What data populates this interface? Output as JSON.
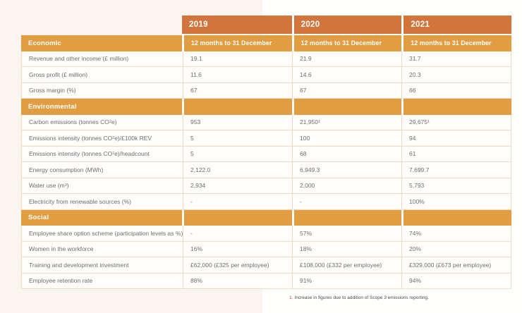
{
  "page": {
    "bg_left": "#faf5ee",
    "bg_right": "#fefefd",
    "accent_dark_orange": "#d2753c",
    "accent_light_orange": "#e29c41",
    "row_border": "#f2d9bd",
    "footnote_red": "#c9472f"
  },
  "table": {
    "years": [
      "2019",
      "2020",
      "2021"
    ],
    "period_label": "12 months to 31 December",
    "sections": [
      {
        "title": "Economic",
        "show_period": true,
        "rows": [
          {
            "label": "Revenue and other income (£ million)",
            "values": [
              "19.1",
              "21.9",
              "31.7"
            ]
          },
          {
            "label": "Gross profit (£ million)",
            "values": [
              "11.6",
              "14.6",
              "20.3"
            ]
          },
          {
            "label": "Gross margin (%)",
            "values": [
              "67",
              "67",
              "66"
            ]
          }
        ]
      },
      {
        "title": "Environmental",
        "show_period": false,
        "rows": [
          {
            "label": "Carbon emissions (tonnes CO~2~e)",
            "values": [
              "953",
              "21,950*1*",
              "29,675*1*"
            ]
          },
          {
            "label": "Emissions intensity (tonnes CO~2~e)/£100k REV",
            "values": [
              "5",
              "100",
              "94"
            ]
          },
          {
            "label": "Emissions intensity (tonnes CO~2~e)/headcount",
            "values": [
              "5",
              "68",
              "61"
            ]
          },
          {
            "label": "Energy consumption (MWh)",
            "values": [
              "2,122.0",
              "6,949.3",
              "7,699.7"
            ]
          },
          {
            "label": "Water use (m^3^)",
            "values": [
              "2,934",
              "2,000",
              "5,793"
            ]
          },
          {
            "label": "Electricity from renewable sources (%)",
            "values": [
              "-",
              "-",
              "100%"
            ]
          }
        ]
      },
      {
        "title": "Social",
        "show_period": false,
        "rows": [
          {
            "label": "Employee share option scheme (participation levels as %)",
            "values": [
              "-",
              "57%",
              "74%"
            ]
          },
          {
            "label": "Women in the workforce",
            "values": [
              "16%",
              "18%",
              "20%"
            ]
          },
          {
            "label": "Training and development investment",
            "values": [
              "£62,000 (£325 per employee)",
              "£108,000 (£332 per employee)",
              "£329,000 (£673 per employee)"
            ]
          },
          {
            "label": "Employee retention rate",
            "values": [
              "88%",
              "91%",
              "94%"
            ]
          }
        ]
      }
    ],
    "footnote": {
      "marker": "1.",
      "text": "Increase in figures due to addition of Scope 3 emissions reporting."
    }
  }
}
